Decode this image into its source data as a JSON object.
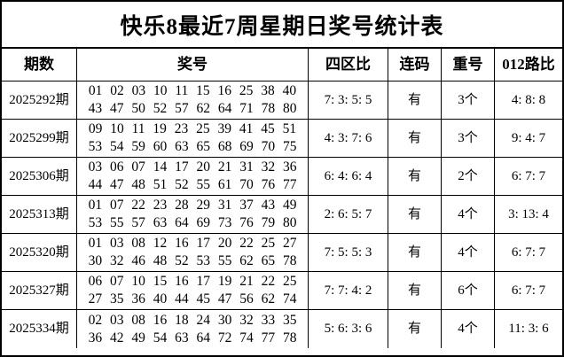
{
  "title": "快乐8最近7周星期日奖号统计表",
  "columns": {
    "period": "期数",
    "numbers": "奖号",
    "zone_ratio": "四区比",
    "consecutive": "连码",
    "repeat": "重号",
    "road_ratio": "012路比"
  },
  "rows": [
    {
      "period": "2025292期",
      "numbers_line1": "01 02 03 10 11 15 16 25 38 40",
      "numbers_line2": "43 47 50 52 57 62 64 71 78 80",
      "zone_ratio": "7: 3: 5: 5",
      "consecutive": "有",
      "repeat": "3个",
      "road_ratio": "4: 8: 8"
    },
    {
      "period": "2025299期",
      "numbers_line1": "09 10 11 19 23 25 39 41 45 51",
      "numbers_line2": "53 54 59 60 63 65 68 69 70 75",
      "zone_ratio": "4: 3: 7: 6",
      "consecutive": "有",
      "repeat": "3个",
      "road_ratio": "9: 4: 7"
    },
    {
      "period": "2025306期",
      "numbers_line1": "03 06 07 14 17 20 21 31 32 36",
      "numbers_line2": "44 47 48 51 52 55 61 70 76 77",
      "zone_ratio": "6: 4: 6: 4",
      "consecutive": "有",
      "repeat": "2个",
      "road_ratio": "6: 7: 7"
    },
    {
      "period": "2025313期",
      "numbers_line1": "01 07 22 23 28 29 31 37 43 49",
      "numbers_line2": "53 55 57 63 64 69 73 76 79 80",
      "zone_ratio": "2: 6: 5: 7",
      "consecutive": "有",
      "repeat": "4个",
      "road_ratio": "3: 13: 4"
    },
    {
      "period": "2025320期",
      "numbers_line1": "01 03 08 12 16 17 20 22 25 27",
      "numbers_line2": "30 32 46 48 52 53 55 62 65 78",
      "zone_ratio": "7: 5: 5: 3",
      "consecutive": "有",
      "repeat": "4个",
      "road_ratio": "6: 7: 7"
    },
    {
      "period": "2025327期",
      "numbers_line1": "06 07 10 15 16 17 19 21 22 25",
      "numbers_line2": "27 35 36 40 44 45 47 56 62 74",
      "zone_ratio": "7: 7: 4: 2",
      "consecutive": "有",
      "repeat": "6个",
      "road_ratio": "6: 7: 7"
    },
    {
      "period": "2025334期",
      "numbers_line1": "02 03 08 16 18 24 30 32 33 35",
      "numbers_line2": "36 42 49 54 63 64 72 74 77 78",
      "zone_ratio": "5: 6: 3: 6",
      "consecutive": "有",
      "repeat": "4个",
      "road_ratio": "11: 3: 6"
    }
  ]
}
